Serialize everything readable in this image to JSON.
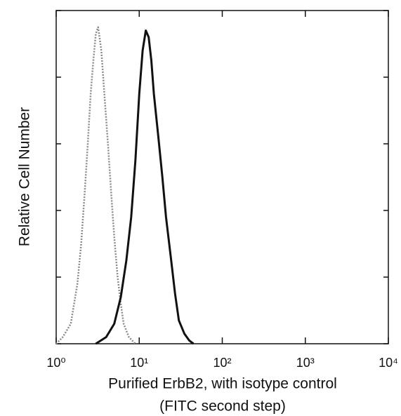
{
  "chart_data": {
    "type": "line",
    "ylabel": "Relative Cell Number",
    "xlabel_lines": [
      "Purified ErbB2, with isotype control",
      "(FITC second step)"
    ],
    "log_x": true,
    "xlim": [
      1,
      10000
    ],
    "xticks": [
      {
        "value": 1,
        "label": "10⁰"
      },
      {
        "value": 10,
        "label": "10¹"
      },
      {
        "value": 100,
        "label": "10²"
      },
      {
        "value": 1000,
        "label": "10³"
      },
      {
        "value": 10000,
        "label": "10⁴"
      }
    ],
    "ylim": [
      0,
      100
    ],
    "yticks": [
      0,
      20,
      40,
      60,
      80,
      100
    ],
    "series": [
      {
        "color": "#8a8a8a",
        "dash": true,
        "x": [
          1.0,
          1.2,
          1.5,
          1.8,
          2.0,
          2.2,
          2.4,
          2.6,
          2.8,
          3.0,
          3.2,
          3.5,
          3.8,
          4.2,
          4.6,
          5.0,
          5.5,
          6.0,
          6.5,
          7.5,
          9
        ],
        "values": [
          0,
          2,
          6,
          18,
          30,
          45,
          60,
          75,
          85,
          93,
          95,
          88,
          75,
          60,
          45,
          32,
          20,
          12,
          6,
          2,
          0
        ]
      },
      {
        "color": "#111111",
        "dash": false,
        "x": [
          3,
          4,
          5,
          6,
          7,
          8,
          9,
          10,
          11,
          12,
          13,
          14,
          15,
          17,
          19,
          21,
          24,
          27,
          30,
          35,
          40,
          45
        ],
        "values": [
          0,
          2,
          6,
          14,
          25,
          38,
          55,
          75,
          88,
          94,
          92,
          85,
          75,
          62,
          50,
          38,
          26,
          15,
          7,
          3,
          1,
          0
        ]
      }
    ]
  }
}
